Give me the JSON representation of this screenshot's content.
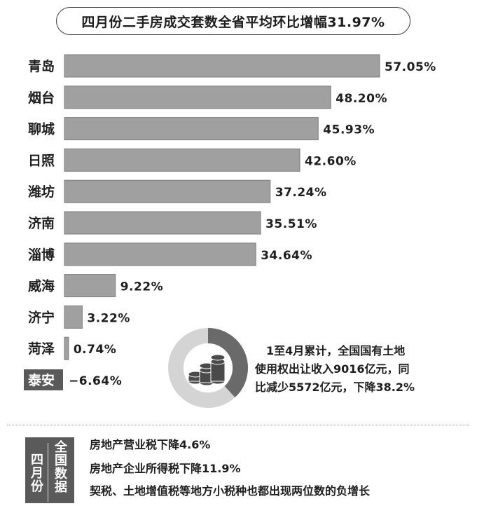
{
  "header": {
    "title": "四月份二手房成交套数全省平均环比增幅31.97%"
  },
  "chart_data": {
    "type": "bar",
    "orientation": "horizontal",
    "title": "四月份二手房成交套数全省平均环比增幅31.97%",
    "xlabel": "",
    "ylabel": "",
    "xlim": [
      -6.64,
      57.05
    ],
    "grid": false,
    "categories": [
      "青岛",
      "烟台",
      "聊城",
      "日照",
      "潍坊",
      "济南",
      "淄博",
      "威海",
      "济宁",
      "菏泽",
      "泰安"
    ],
    "values": [
      57.05,
      48.2,
      45.93,
      42.6,
      37.24,
      35.51,
      34.64,
      9.22,
      3.22,
      0.74,
      -6.64
    ],
    "value_labels": [
      "57.05%",
      "48.20%",
      "45.93%",
      "42.60%",
      "37.24%",
      "35.51%",
      "34.64%",
      "9.22%",
      "3.22%",
      "0.74%",
      "−6.64%"
    ],
    "colors": {
      "bar": "#a0a0a0",
      "bar_edge": "#7c7c7c",
      "negative_label_bg": "#5a5a5a"
    }
  },
  "land_revenue": {
    "lines": [
      "1至4月累计，全国国有土地",
      "使用权出让收入9016亿元，同",
      "比减少5572亿元，下降38.2%"
    ],
    "share_pct": 38.2,
    "icon": "coin-stack-icon",
    "colors": {
      "ring_dark": "#6a6a6a",
      "ring_light": "#d4d4d4",
      "coin": "#4a4a4a"
    }
  },
  "april_national": {
    "tag_month": "四月份",
    "tag_data": "全国数据",
    "notes": [
      "房地产营业税下降4.6%",
      "房地产企业所得税下降11.9%",
      "契税、土地增值税等地方小税种也都出现两位数的负增长"
    ]
  }
}
